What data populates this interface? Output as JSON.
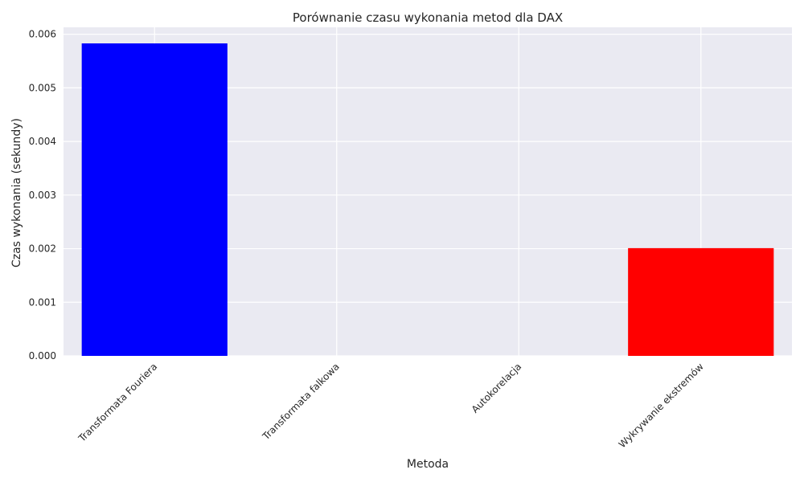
{
  "chart_data": {
    "type": "bar",
    "title": "Porównanie czasu wykonania metod dla DAX",
    "xlabel": "Metoda",
    "ylabel": "Czas wykonania (sekundy)",
    "categories": [
      "Transformata Fouriera",
      "Transformata falkowa",
      "Autokorelacja",
      "Wykrywanie ekstremów"
    ],
    "values": [
      0.00583,
      0.0,
      0.0,
      0.00201
    ],
    "colors": [
      "#0000ff",
      "#008000",
      "#ffa500",
      "#ff0000"
    ],
    "ylim": [
      0,
      0.00613
    ],
    "yticks": [
      0,
      0.001,
      0.002,
      0.003,
      0.004,
      0.005,
      0.006
    ],
    "ytick_labels": [
      "0.000",
      "0.001",
      "0.002",
      "0.003",
      "0.004",
      "0.005",
      "0.006"
    ],
    "grid": true,
    "plot_background": "#eaeaf2",
    "grid_color": "#ffffff"
  }
}
